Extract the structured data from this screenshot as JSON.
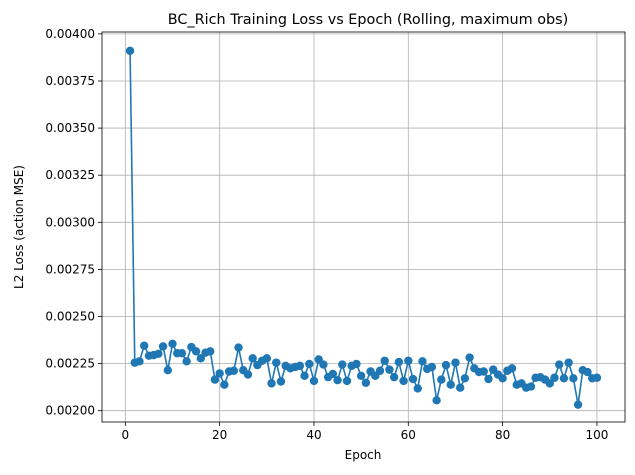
{
  "chart_data": {
    "type": "line",
    "title": "BC_Rich Training Loss vs Epoch (Rolling, maximum obs)",
    "xlabel": "Epoch",
    "ylabel": "L2 Loss (action MSE)",
    "xlim": [
      -4.95,
      105.95
    ],
    "ylim": [
      0.00194,
      0.00401
    ],
    "xticks": [
      0,
      20,
      40,
      60,
      80,
      100
    ],
    "yticks": [
      0.002,
      0.00225,
      0.0025,
      0.00275,
      0.003,
      0.00325,
      0.0035,
      0.00375,
      0.004
    ],
    "xtick_labels": [
      "0",
      "20",
      "40",
      "60",
      "80",
      "100"
    ],
    "ytick_labels": [
      "0.00200",
      "0.00225",
      "0.00250",
      "0.00275",
      "0.00300",
      "0.00325",
      "0.00350",
      "0.00375",
      "0.00400"
    ],
    "grid": true,
    "color": "#1f77b4",
    "marker": "circle",
    "x": [
      1,
      2,
      3,
      4,
      5,
      6,
      7,
      8,
      9,
      10,
      11,
      12,
      13,
      14,
      15,
      16,
      17,
      18,
      19,
      20,
      21,
      22,
      23,
      24,
      25,
      26,
      27,
      28,
      29,
      30,
      31,
      32,
      33,
      34,
      35,
      36,
      37,
      38,
      39,
      40,
      41,
      42,
      43,
      44,
      45,
      46,
      47,
      48,
      49,
      50,
      51,
      52,
      53,
      54,
      55,
      56,
      57,
      58,
      59,
      60,
      61,
      62,
      63,
      64,
      65,
      66,
      67,
      68,
      69,
      70,
      71,
      72,
      73,
      74,
      75,
      76,
      77,
      78,
      79,
      80,
      81,
      82,
      83,
      84,
      85,
      86,
      87,
      88,
      89,
      90,
      91,
      92,
      93,
      94,
      95,
      96,
      97,
      98,
      99,
      100
    ],
    "y": [
      0.00391,
      0.002255,
      0.002262,
      0.002345,
      0.002292,
      0.002295,
      0.002302,
      0.002341,
      0.002215,
      0.002355,
      0.002305,
      0.002305,
      0.002262,
      0.002338,
      0.002315,
      0.002278,
      0.002308,
      0.002315,
      0.002165,
      0.002198,
      0.002138,
      0.002208,
      0.002212,
      0.002335,
      0.002215,
      0.002192,
      0.002278,
      0.002242,
      0.002265,
      0.002278,
      0.002145,
      0.002255,
      0.002155,
      0.002238,
      0.002225,
      0.002232,
      0.002238,
      0.002185,
      0.002248,
      0.002158,
      0.002272,
      0.002245,
      0.002178,
      0.002195,
      0.002162,
      0.002245,
      0.002158,
      0.002238,
      0.002248,
      0.002185,
      0.002148,
      0.002208,
      0.002185,
      0.002212,
      0.002265,
      0.002218,
      0.002178,
      0.002258,
      0.002158,
      0.002265,
      0.002168,
      0.002118,
      0.002262,
      0.002222,
      0.002232,
      0.002055,
      0.002165,
      0.002242,
      0.002138,
      0.002255,
      0.002122,
      0.002172,
      0.002282,
      0.002225,
      0.002205,
      0.002208,
      0.002168,
      0.002218,
      0.002192,
      0.002172,
      0.002212,
      0.002225,
      0.002138,
      0.002145,
      0.002122,
      0.002128,
      0.002175,
      0.002178,
      0.002165,
      0.002145,
      0.002175,
      0.002245,
      0.002172,
      0.002255,
      0.002172,
      0.002032,
      0.002215,
      0.002205,
      0.002172,
      0.002175
    ]
  }
}
